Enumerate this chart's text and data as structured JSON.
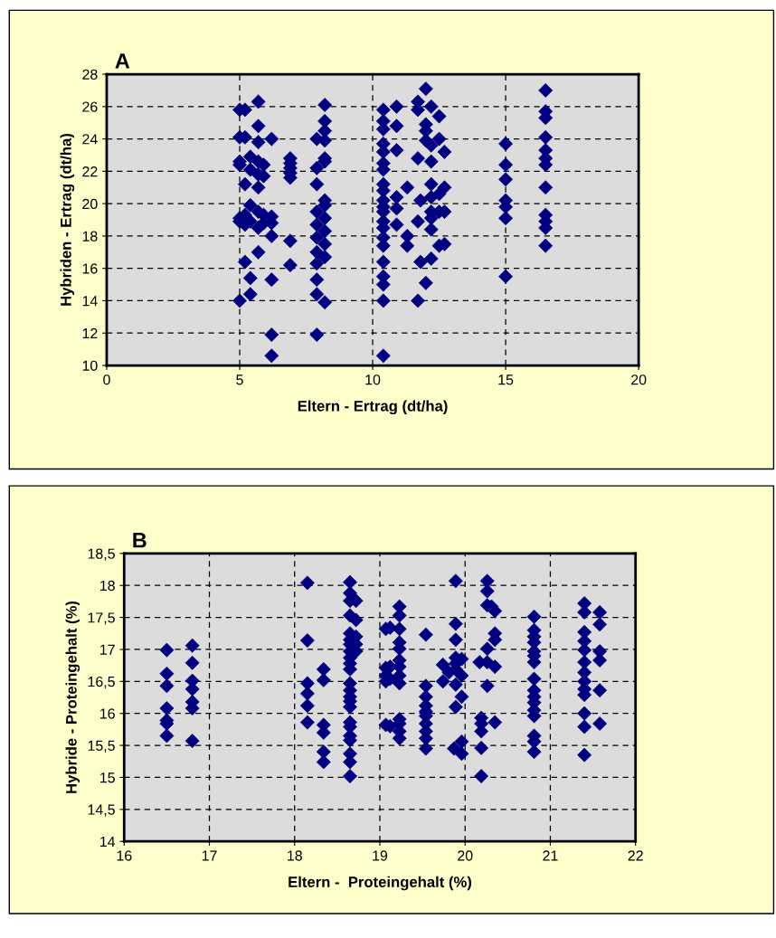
{
  "chart_data": [
    {
      "type": "scatter",
      "title": "A",
      "xlabel": "Eltern - Ertrag (dt/ha)",
      "ylabel": "Hybriden - Ertrag (dt/ha)",
      "marker": "diamond",
      "grid": true,
      "xlim": [
        0,
        20
      ],
      "xticks": [
        0,
        5,
        10,
        15,
        20
      ],
      "ylim": [
        10,
        28
      ],
      "yticks": [
        10,
        12,
        14,
        16,
        18,
        20,
        22,
        24,
        26,
        28
      ],
      "series": [
        {
          "color": "#000080",
          "x": [
            5.0,
            5.0,
            5.0,
            5.0,
            5.0,
            5.0,
            5.0,
            5.2,
            5.2,
            5.2,
            5.2,
            5.2,
            5.2,
            5.4,
            5.4,
            5.4,
            5.4,
            5.4,
            5.4,
            5.7,
            5.7,
            5.7,
            5.7,
            5.7,
            5.7,
            5.7,
            5.7,
            5.7,
            5.9,
            5.9,
            5.9,
            5.9,
            6.2,
            6.2,
            6.2,
            6.2,
            6.2,
            6.2,
            6.2,
            6.9,
            6.9,
            6.9,
            6.9,
            6.9,
            6.9,
            6.9,
            7.9,
            7.9,
            7.9,
            7.9,
            7.9,
            7.9,
            7.9,
            7.9,
            7.9,
            7.9,
            7.9,
            8.2,
            8.2,
            8.2,
            8.2,
            8.2,
            8.2,
            8.2,
            8.2,
            8.2,
            8.2,
            8.2,
            8.2,
            8.2,
            10.4,
            10.4,
            10.4,
            10.4,
            10.4,
            10.4,
            10.4,
            10.4,
            10.4,
            10.4,
            10.4,
            10.4,
            10.4,
            10.4,
            10.4,
            10.4,
            10.4,
            10.4,
            10.4,
            10.4,
            10.4,
            10.9,
            10.9,
            10.9,
            10.9,
            10.9,
            10.9,
            11.3,
            11.3,
            11.3,
            11.7,
            11.7,
            11.7,
            11.7,
            11.7,
            11.8,
            11.8,
            12.0,
            12.0,
            12.0,
            12.0,
            12.0,
            12.2,
            12.2,
            12.2,
            12.2,
            12.2,
            12.2,
            12.2,
            12.2,
            12.2,
            12.5,
            12.5,
            12.5,
            12.5,
            12.5,
            12.7,
            12.7,
            12.7,
            12.7,
            15.0,
            15.0,
            15.0,
            15.0,
            15.0,
            15.0,
            15.0,
            16.5,
            16.5,
            16.5,
            16.5,
            16.5,
            16.5,
            16.5,
            16.5,
            16.5,
            16.5,
            16.5,
            16.5
          ],
          "values": [
            25.8,
            24.1,
            22.6,
            22.4,
            19.1,
            18.9,
            14.0,
            25.8,
            24.1,
            21.2,
            19.3,
            18.7,
            16.4,
            22.9,
            22.1,
            19.9,
            18.9,
            15.4,
            14.4,
            26.3,
            24.8,
            23.8,
            22.6,
            21.8,
            21.0,
            19.5,
            18.5,
            17.0,
            22.4,
            21.7,
            19.3,
            18.8,
            24.0,
            19.2,
            18.8,
            18.0,
            15.3,
            11.9,
            10.6,
            22.8,
            22.5,
            22.2,
            21.9,
            21.6,
            17.7,
            16.2,
            24.0,
            22.2,
            21.2,
            19.5,
            18.7,
            17.9,
            17.0,
            16.3,
            15.3,
            14.4,
            11.9,
            26.1,
            25.1,
            24.5,
            23.9,
            22.8,
            22.6,
            20.2,
            19.9,
            19.1,
            18.3,
            17.5,
            16.7,
            13.9,
            25.8,
            25.1,
            24.6,
            23.7,
            23.2,
            22.5,
            22.1,
            21.2,
            20.8,
            20.2,
            19.8,
            19.5,
            18.9,
            18.5,
            17.9,
            17.4,
            16.4,
            15.5,
            15.0,
            14.0,
            10.6,
            26.0,
            24.8,
            23.3,
            20.4,
            19.7,
            18.7,
            21.0,
            18.0,
            17.4,
            26.3,
            25.8,
            22.8,
            18.9,
            14.0,
            20.2,
            16.4,
            27.1,
            24.9,
            24.5,
            23.9,
            15.1,
            26.0,
            23.6,
            22.6,
            21.2,
            20.4,
            19.5,
            19.1,
            18.4,
            16.6,
            25.4,
            24.0,
            20.6,
            19.5,
            17.4,
            23.2,
            21.0,
            19.5,
            17.5,
            23.7,
            22.4,
            21.5,
            20.2,
            19.8,
            19.1,
            15.5,
            27.0,
            25.7,
            25.3,
            24.1,
            23.3,
            22.8,
            22.4,
            21.0,
            19.3,
            18.9,
            18.5,
            17.4
          ]
        }
      ]
    },
    {
      "type": "scatter",
      "title": "B",
      "xlabel": "Eltern -  Proteingehalt (%)",
      "ylabel": "Hybride - Proteingehalt (%)",
      "marker": "diamond",
      "grid": true,
      "xlim": [
        16,
        22
      ],
      "xticks": [
        16,
        17,
        18,
        19,
        20,
        21,
        22
      ],
      "ylim": [
        14,
        18.5
      ],
      "yticks": [
        14,
        {
          "value": 14.5,
          "label": "14,5"
        },
        15,
        {
          "value": 15.5,
          "label": "15,5"
        },
        16,
        {
          "value": 16.5,
          "label": "16,5"
        },
        17,
        {
          "value": 17.5,
          "label": "17,5"
        },
        18,
        {
          "value": 18.5,
          "label": "18,5"
        }
      ],
      "series": [
        {
          "color": "#000080",
          "x": [
            16.5,
            16.5,
            16.5,
            16.5,
            16.5,
            16.5,
            16.5,
            16.8,
            16.8,
            16.8,
            16.8,
            16.8,
            16.8,
            16.8,
            18.15,
            18.15,
            18.15,
            18.15,
            18.15,
            18.15,
            18.34,
            18.34,
            18.34,
            18.34,
            18.34,
            18.34,
            18.65,
            18.65,
            18.65,
            18.65,
            18.65,
            18.65,
            18.65,
            18.65,
            18.65,
            18.65,
            18.65,
            18.65,
            18.65,
            18.65,
            18.65,
            18.65,
            18.65,
            18.65,
            18.65,
            18.65,
            18.65,
            18.65,
            18.65,
            18.72,
            18.72,
            18.72,
            18.72,
            18.72,
            19.07,
            19.07,
            19.07,
            19.07,
            19.07,
            19.12,
            19.12,
            19.12,
            19.12,
            19.23,
            19.23,
            19.23,
            19.23,
            19.23,
            19.23,
            19.23,
            19.23,
            19.23,
            19.23,
            19.23,
            19.23,
            19.23,
            19.54,
            19.54,
            19.54,
            19.54,
            19.54,
            19.54,
            19.54,
            19.54,
            19.54,
            19.54,
            19.74,
            19.74,
            19.81,
            19.89,
            19.89,
            19.89,
            19.89,
            19.89,
            19.89,
            19.89,
            19.89,
            19.87,
            19.96,
            19.96,
            19.96,
            19.96,
            19.96,
            20.17,
            20.19,
            20.19,
            20.19,
            20.19,
            20.19,
            20.26,
            20.26,
            20.26,
            20.26,
            20.26,
            20.26,
            20.31,
            20.35,
            20.35,
            20.35,
            20.35,
            20.35,
            20.81,
            20.81,
            20.81,
            20.81,
            20.81,
            20.81,
            20.81,
            20.81,
            20.81,
            20.81,
            20.81,
            20.81,
            20.81,
            20.81,
            20.81,
            20.81,
            21.4,
            21.4,
            21.4,
            21.4,
            21.4,
            21.4,
            21.4,
            21.4,
            21.4,
            21.4,
            21.4,
            21.4,
            21.4,
            21.58,
            21.58,
            21.58,
            21.58,
            21.58,
            21.58
          ],
          "values": [
            16.99,
            16.62,
            16.43,
            16.08,
            15.89,
            15.84,
            15.65,
            17.06,
            16.79,
            16.51,
            16.38,
            16.18,
            16.08,
            15.57,
            18.04,
            17.14,
            16.47,
            16.31,
            16.12,
            15.86,
            16.69,
            16.52,
            15.82,
            15.7,
            15.4,
            15.24,
            18.05,
            17.88,
            17.76,
            17.53,
            17.25,
            17.15,
            17.08,
            16.97,
            16.87,
            16.78,
            16.69,
            16.47,
            16.36,
            16.26,
            16.19,
            16.1,
            15.86,
            15.79,
            15.65,
            15.58,
            15.37,
            15.24,
            15.02,
            17.76,
            17.46,
            17.2,
            17.08,
            16.97,
            17.32,
            16.71,
            16.59,
            16.5,
            15.82,
            17.34,
            16.73,
            16.54,
            15.8,
            17.67,
            17.53,
            17.32,
            17.11,
            17.01,
            16.83,
            16.73,
            16.59,
            16.47,
            15.91,
            15.84,
            15.72,
            15.61,
            17.23,
            16.43,
            16.26,
            16.12,
            16.03,
            15.96,
            15.84,
            15.72,
            15.61,
            15.45,
            16.76,
            16.5,
            16.64,
            18.07,
            17.4,
            17.15,
            16.87,
            16.78,
            16.69,
            16.45,
            16.1,
            15.45,
            16.85,
            16.59,
            16.26,
            15.56,
            15.37,
            16.8,
            15.93,
            15.84,
            15.72,
            15.46,
            15.02,
            18.07,
            17.91,
            17.69,
            17.01,
            16.8,
            16.43,
            17.67,
            17.6,
            17.25,
            17.15,
            16.73,
            15.86,
            17.51,
            17.3,
            17.2,
            17.11,
            16.97,
            16.9,
            16.8,
            16.54,
            16.36,
            16.26,
            16.17,
            16.05,
            15.96,
            15.65,
            15.56,
            15.4,
            17.72,
            17.58,
            17.27,
            17.13,
            16.99,
            16.8,
            16.64,
            16.5,
            16.38,
            16.29,
            16.0,
            15.79,
            15.35,
            17.58,
            17.39,
            16.97,
            16.83,
            16.36,
            15.84
          ]
        }
      ]
    }
  ]
}
